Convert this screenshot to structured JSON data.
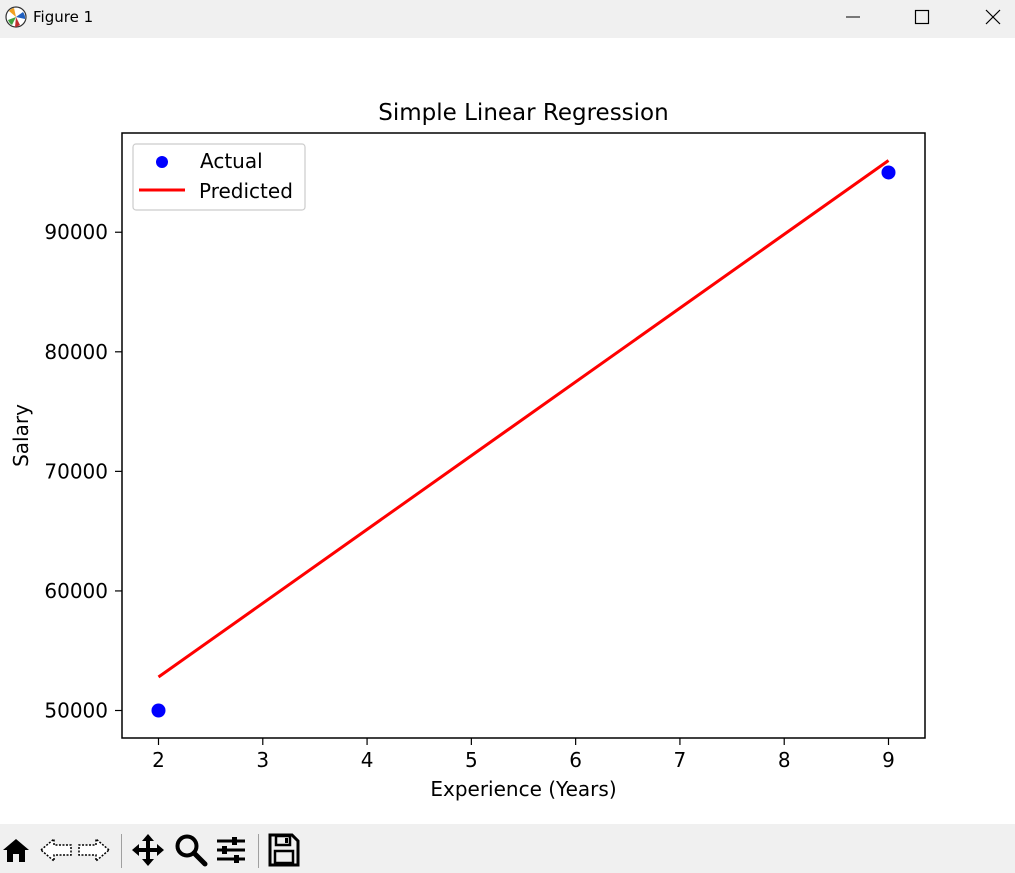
{
  "window": {
    "title": "Figure 1",
    "controls": [
      "minimize",
      "maximize",
      "close"
    ]
  },
  "toolbar": {
    "buttons": [
      "home-icon",
      "back-icon",
      "forward-icon",
      "pan-icon",
      "zoom-icon",
      "configure-subplots-icon",
      "save-icon"
    ]
  },
  "chart_data": {
    "type": "scatter",
    "title": "Simple Linear Regression",
    "xlabel": "Experience (Years)",
    "ylabel": "Salary",
    "xlim": [
      1.65,
      9.35
    ],
    "ylim": [
      47700,
      98300
    ],
    "x_ticks": [
      2,
      3,
      4,
      5,
      6,
      7,
      8,
      9
    ],
    "y_ticks": [
      50000,
      60000,
      70000,
      80000,
      90000
    ],
    "grid": false,
    "legend_position": "upper-left",
    "series": [
      {
        "name": "Actual",
        "kind": "scatter",
        "color": "#0000ff",
        "points": [
          [
            2,
            50000
          ],
          [
            9,
            95000
          ]
        ]
      },
      {
        "name": "Predicted",
        "kind": "line",
        "color": "#ff0000",
        "points": [
          [
            2,
            52800
          ],
          [
            9,
            96000
          ]
        ]
      }
    ]
  }
}
